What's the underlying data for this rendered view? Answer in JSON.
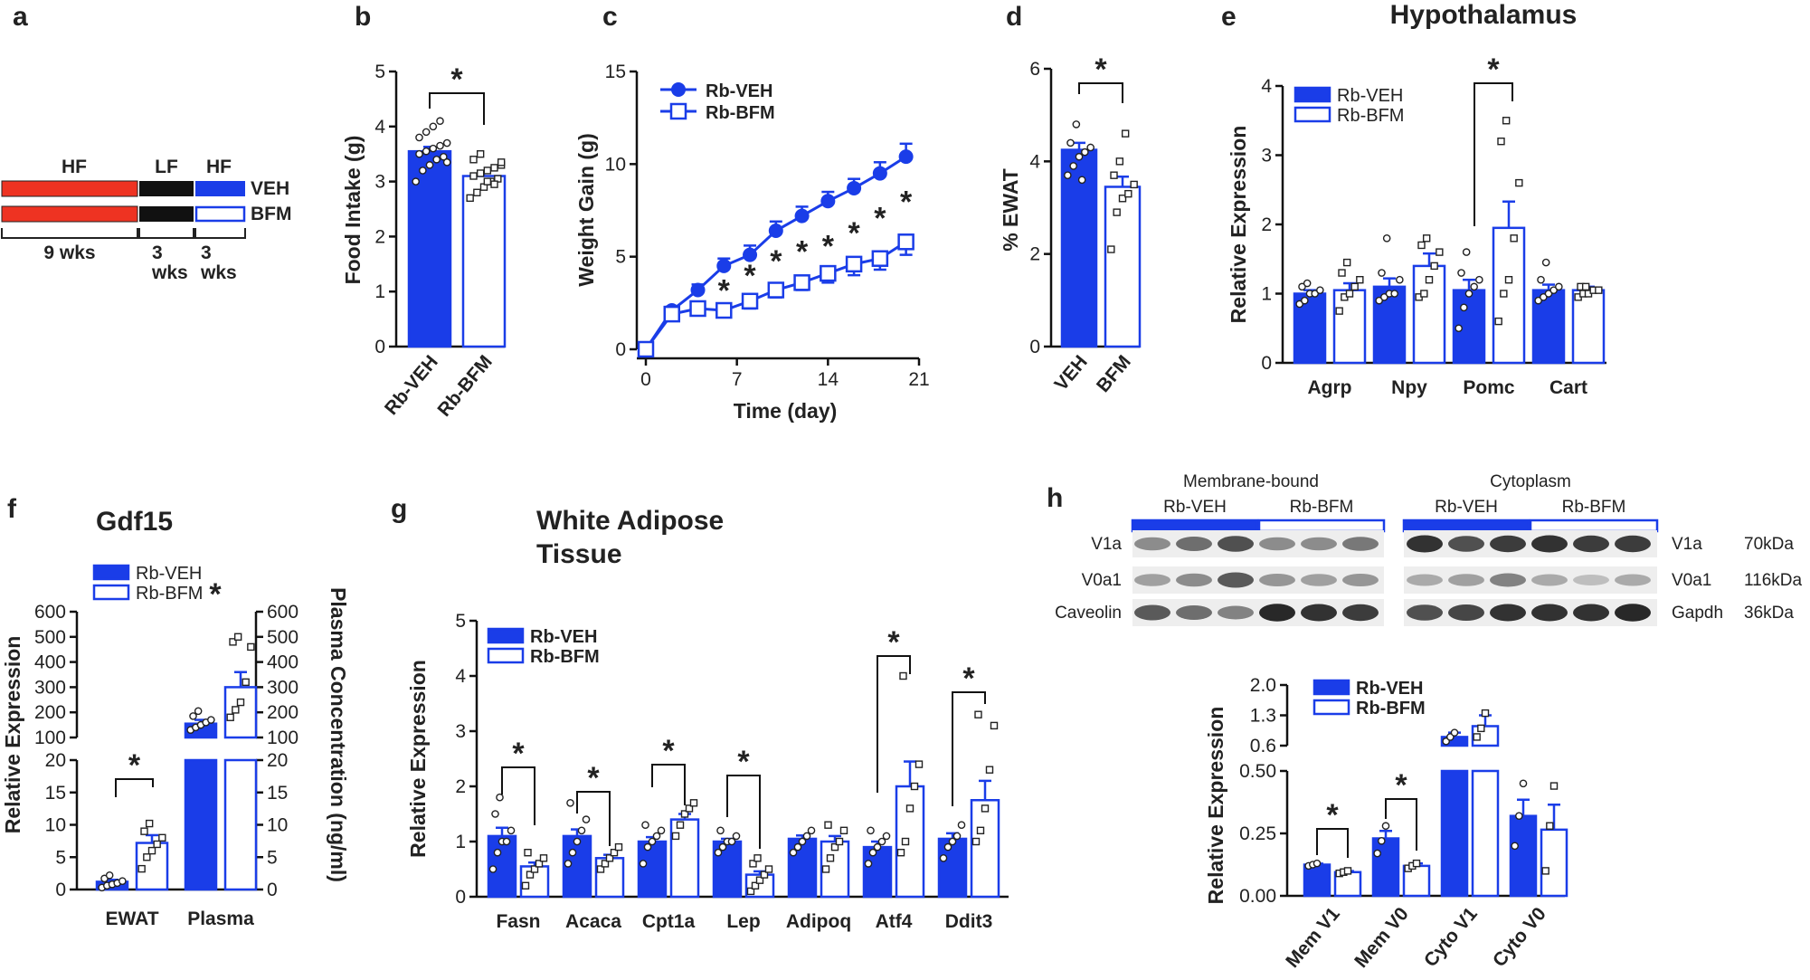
{
  "colors": {
    "veh": "#1a3de8",
    "bfm": "#1a3de8",
    "hf": "#ee3322",
    "lf": "#111111"
  },
  "panel_labels": [
    "a",
    "b",
    "c",
    "d",
    "e",
    "f",
    "g",
    "h"
  ],
  "timeline": {
    "rows": [
      {
        "label": "VEH"
      },
      {
        "label": "BFM"
      }
    ],
    "phases": [
      "HF",
      "LF",
      "HF"
    ],
    "durations": [
      "9 wks",
      "3",
      "wks",
      "3",
      "wks"
    ]
  },
  "chart_data": [
    {
      "id": "b",
      "type": "bar",
      "title": "",
      "ylabel": "Food Intake (g)",
      "ylim": [
        0,
        5
      ],
      "yticks": [
        "0",
        "1",
        "2",
        "3",
        "4",
        "5"
      ],
      "categories": [
        "Rb-VEH",
        "Rb-BFM"
      ],
      "values": [
        3.55,
        3.1
      ],
      "errors": [
        0.08,
        0.07
      ],
      "points": [
        [
          3.0,
          3.2,
          3.3,
          3.4,
          3.45,
          3.5,
          3.55,
          3.6,
          3.65,
          3.7,
          3.8,
          3.9,
          4.0,
          4.1,
          3.35
        ],
        [
          2.7,
          2.8,
          2.9,
          3.0,
          3.05,
          3.1,
          3.15,
          3.2,
          3.25,
          3.3,
          3.4,
          3.5,
          3.0,
          2.95,
          3.35
        ]
      ],
      "sig": [
        "*"
      ]
    },
    {
      "id": "c",
      "type": "line",
      "ylabel": "Weight Gain (g)",
      "xlabel": "Time (day)",
      "xlim": [
        0,
        21
      ],
      "ylim": [
        0,
        15
      ],
      "xticks": [
        "0",
        "7",
        "14",
        "21"
      ],
      "yticks": [
        "0",
        "5",
        "10",
        "15"
      ],
      "x": [
        0,
        2,
        4,
        6,
        8,
        10,
        12,
        14,
        16,
        18,
        20
      ],
      "series": [
        {
          "name": "Rb-VEH",
          "values": [
            0,
            2.1,
            3.2,
            4.5,
            5.1,
            6.4,
            7.2,
            8.0,
            8.7,
            9.5,
            10.4
          ],
          "errors": [
            0,
            0.2,
            0.3,
            0.4,
            0.5,
            0.5,
            0.5,
            0.5,
            0.5,
            0.6,
            0.7
          ]
        },
        {
          "name": "Rb-BFM",
          "values": [
            0,
            1.9,
            2.2,
            2.1,
            2.6,
            3.2,
            3.6,
            4.1,
            4.6,
            4.9,
            5.8
          ],
          "errors": [
            0,
            0.2,
            0.3,
            0.3,
            0.4,
            0.4,
            0.4,
            0.5,
            0.6,
            0.6,
            0.7
          ]
        }
      ],
      "sig_x": [
        6,
        8,
        10,
        12,
        14,
        16,
        18,
        20
      ],
      "sig_y": [
        3.2,
        4.0,
        4.8,
        5.3,
        5.6,
        6.3,
        7.1,
        8.0
      ],
      "sig": [
        "*"
      ]
    },
    {
      "id": "d",
      "type": "bar",
      "ylabel": "% EWAT",
      "ylim": [
        0,
        6
      ],
      "yticks": [
        "0",
        "2",
        "4",
        "6"
      ],
      "categories": [
        "VEH",
        "BFM"
      ],
      "values": [
        4.25,
        3.45
      ],
      "errors": [
        0.15,
        0.22
      ],
      "points": [
        [
          3.7,
          3.9,
          4.1,
          4.2,
          4.3,
          4.4,
          4.8,
          3.6
        ],
        [
          2.1,
          2.9,
          3.2,
          3.3,
          3.5,
          3.7,
          4.0,
          4.6
        ]
      ],
      "sig": [
        "*"
      ]
    },
    {
      "id": "e",
      "type": "bar",
      "title": "Hypothalamus",
      "ylabel": "Relative Expression",
      "ylim": [
        0,
        4
      ],
      "yticks": [
        "0",
        "1",
        "2",
        "3",
        "4"
      ],
      "categories": [
        "Agrp",
        "Npy",
        "Pomc",
        "Cart"
      ],
      "series": [
        {
          "name": "Rb-VEH",
          "values": [
            1.0,
            1.1,
            1.05,
            1.05
          ],
          "errors": [
            0.05,
            0.12,
            0.15,
            0.08
          ]
        },
        {
          "name": "Rb-BFM",
          "values": [
            1.05,
            1.4,
            1.95,
            1.05
          ],
          "errors": [
            0.1,
            0.18,
            0.38,
            0.05
          ]
        }
      ],
      "points": [
        [
          [
            0.85,
            0.9,
            1.0,
            1.0,
            1.05,
            1.1,
            1.15
          ],
          [
            0.75,
            0.95,
            1.0,
            1.1,
            1.2,
            1.3,
            1.45
          ]
        ],
        [
          [
            0.9,
            0.95,
            1.0,
            1.0,
            1.2,
            1.3,
            1.8
          ],
          [
            0.95,
            1.0,
            1.2,
            1.4,
            1.6,
            1.7,
            1.8
          ]
        ],
        [
          [
            0.5,
            0.8,
            1.0,
            1.1,
            1.2,
            1.3,
            1.6
          ],
          [
            0.6,
            1.0,
            1.2,
            1.8,
            2.6,
            3.2,
            3.5
          ]
        ],
        [
          [
            0.9,
            0.95,
            1.0,
            1.05,
            1.1,
            1.2,
            1.45
          ],
          [
            0.95,
            1.0,
            1.0,
            1.05,
            1.05,
            1.1,
            1.1
          ]
        ]
      ],
      "sig": [
        "*"
      ]
    },
    {
      "id": "f",
      "type": "bar",
      "title": "Gdf15",
      "ylabel": "Relative Expression",
      "ylabel_right": "Plasma Concentration (ng/ml)",
      "ylim_low": [
        0,
        20
      ],
      "ylim_high": [
        100,
        600
      ],
      "yticks_low": [
        "0",
        "5",
        "10",
        "15",
        "20"
      ],
      "yticks_high": [
        "100",
        "200",
        "300",
        "400",
        "500",
        "600"
      ],
      "categories": [
        "EWAT",
        "Plasma"
      ],
      "series": [
        {
          "name": "Rb-VEH",
          "values": [
            1.2,
            155
          ],
          "errors": [
            0.3,
            15
          ]
        },
        {
          "name": "Rb-BFM",
          "values": [
            7.2,
            300
          ],
          "errors": [
            1.2,
            60
          ]
        }
      ],
      "points": [
        [
          [
            0.3,
            0.6,
            0.8,
            1.0,
            1.3,
            1.7,
            2.2
          ],
          [
            3.2,
            5.0,
            6.0,
            7.0,
            8.0,
            9.0,
            10.2
          ]
        ],
        [
          [
            130,
            140,
            150,
            160,
            170,
            185,
            205
          ],
          [
            180,
            210,
            240,
            320,
            460,
            480,
            500
          ]
        ]
      ],
      "sig": [
        "*"
      ]
    },
    {
      "id": "g",
      "type": "bar",
      "title": "White Adipose Tissue",
      "title_lines": [
        "White Adipose",
        "Tissue"
      ],
      "ylabel": "Relative Expression",
      "ylim": [
        0,
        5
      ],
      "yticks": [
        "0",
        "1",
        "2",
        "3",
        "4",
        "5"
      ],
      "categories": [
        "Fasn",
        "Acaca",
        "Cpt1a",
        "Lep",
        "Adipoq",
        "Atf4",
        "Ddit3"
      ],
      "series": [
        {
          "name": "Rb-VEH",
          "values": [
            1.1,
            1.1,
            1.0,
            1.0,
            1.05,
            0.9,
            1.05
          ],
          "errors": [
            0.15,
            0.12,
            0.08,
            0.05,
            0.06,
            0.1,
            0.1
          ]
        },
        {
          "name": "Rb-BFM",
          "values": [
            0.55,
            0.7,
            1.4,
            0.4,
            1.0,
            2.0,
            1.75
          ],
          "errors": [
            0.07,
            0.06,
            0.1,
            0.06,
            0.1,
            0.45,
            0.35
          ]
        }
      ],
      "points": [
        [
          [
            0.5,
            0.8,
            1.0,
            1.0,
            1.2,
            1.5,
            1.8
          ],
          [
            0.2,
            0.4,
            0.5,
            0.6,
            0.7,
            0.8
          ]
        ],
        [
          [
            0.6,
            0.8,
            1.0,
            1.2,
            1.4,
            1.7
          ],
          [
            0.5,
            0.6,
            0.7,
            0.8,
            0.9
          ]
        ],
        [
          [
            0.6,
            0.9,
            1.0,
            1.1,
            1.2,
            1.3
          ],
          [
            1.1,
            1.3,
            1.5,
            1.6,
            1.7
          ]
        ],
        [
          [
            0.8,
            0.9,
            1.0,
            1.0,
            1.1,
            1.2
          ],
          [
            0.1,
            0.2,
            0.3,
            0.4,
            0.5,
            0.6,
            0.7
          ]
        ],
        [
          [
            0.8,
            0.9,
            1.0,
            1.1,
            1.2
          ],
          [
            0.5,
            0.7,
            0.9,
            1.0,
            1.2,
            1.3
          ]
        ],
        [
          [
            0.6,
            0.8,
            0.9,
            1.0,
            1.1,
            1.2
          ],
          [
            0.8,
            1.0,
            1.6,
            2.0,
            2.4,
            4.0
          ]
        ],
        [
          [
            0.7,
            0.9,
            1.0,
            1.1,
            1.3
          ],
          [
            1.0,
            1.2,
            1.6,
            2.3,
            3.1,
            3.3
          ]
        ]
      ],
      "sig": [
        "*"
      ]
    },
    {
      "id": "h",
      "type": "bar",
      "ylabel": "Relative Expression",
      "ylim_low": [
        0,
        0.5
      ],
      "ylim_high": [
        0.6,
        2.0
      ],
      "yticks_low": [
        "0.00",
        "0.25",
        "0.50"
      ],
      "yticks_high": [
        "0.6",
        "1.3",
        "2.0"
      ],
      "categories": [
        "Mem V1",
        "Mem V0",
        "Cyto V1",
        "Cyto V0"
      ],
      "series": [
        {
          "name": "Rb-VEH",
          "values": [
            0.125,
            0.23,
            0.8,
            0.32
          ],
          "errors": [
            0.004,
            0.03,
            0.1,
            0.065
          ]
        },
        {
          "name": "Rb-BFM",
          "values": [
            0.095,
            0.12,
            1.05,
            0.265
          ],
          "errors": [
            0.004,
            0.01,
            0.25,
            0.1
          ]
        }
      ],
      "points": [
        [
          [
            0.12,
            0.125,
            0.13
          ],
          [
            0.09,
            0.095,
            0.1
          ]
        ],
        [
          [
            0.17,
            0.22,
            0.28
          ],
          [
            0.11,
            0.12,
            0.13
          ]
        ],
        [
          [
            0.7,
            0.8,
            0.9
          ],
          [
            0.8,
            1.0,
            1.35
          ]
        ],
        [
          [
            0.2,
            0.32,
            0.45
          ],
          [
            0.1,
            0.28,
            0.44
          ]
        ]
      ],
      "sig": [
        "*"
      ]
    }
  ],
  "blot": {
    "groups": [
      "Membrane-bound",
      "Cytoplasm"
    ],
    "conditions": [
      "Rb-VEH",
      "Rb-BFM",
      "Rb-VEH",
      "Rb-BFM"
    ],
    "left_labels": [
      "V1a",
      "V0a1",
      "Caveolin"
    ],
    "right_labels": [
      "V1a",
      "V0a1",
      "Gapdh"
    ],
    "sizes": [
      "70kDa",
      "116kDa",
      "36kDa"
    ],
    "bands_left": [
      [
        0.45,
        0.6,
        0.75,
        0.45,
        0.45,
        0.55
      ],
      [
        0.35,
        0.45,
        0.7,
        0.4,
        0.35,
        0.4
      ],
      [
        0.7,
        0.6,
        0.5,
        0.95,
        0.9,
        0.85
      ]
    ],
    "bands_right": [
      [
        0.9,
        0.75,
        0.85,
        0.9,
        0.85,
        0.85
      ],
      [
        0.3,
        0.35,
        0.5,
        0.3,
        0.2,
        0.3
      ],
      [
        0.75,
        0.8,
        0.9,
        0.9,
        0.9,
        0.95
      ]
    ]
  }
}
